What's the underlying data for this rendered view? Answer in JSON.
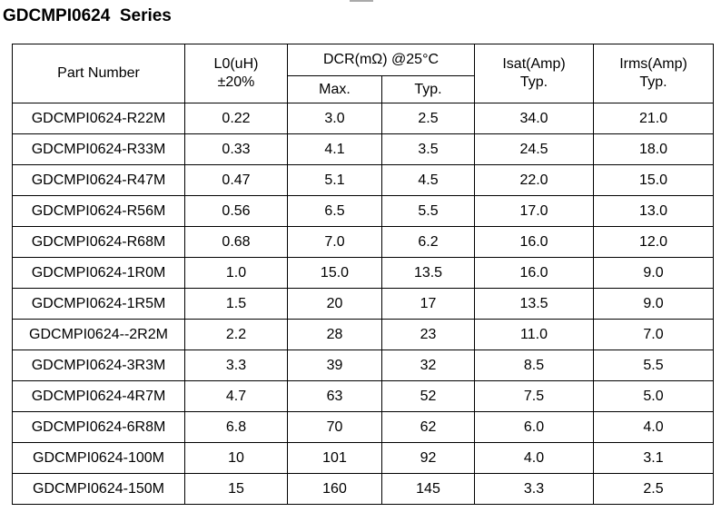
{
  "header": {
    "title": "GDCMPI0624  Series"
  },
  "table": {
    "columns": {
      "part_number": "Part Number",
      "l0": [
        "L0(uH)",
        "±20%"
      ],
      "dcr": "DCR(mΩ) @25°C",
      "dcr_max": "Max.",
      "dcr_typ": "Typ.",
      "isat": [
        "Isat(Amp)",
        "Typ."
      ],
      "irms": [
        "Irms(Amp)",
        "Typ."
      ]
    },
    "rows": [
      [
        "GDCMPI0624-R22M",
        "0.22",
        "3.0",
        "2.5",
        "34.0",
        "21.0"
      ],
      [
        "GDCMPI0624-R33M",
        "0.33",
        "4.1",
        "3.5",
        "24.5",
        "18.0"
      ],
      [
        "GDCMPI0624-R47M",
        "0.47",
        "5.1",
        "4.5",
        "22.0",
        "15.0"
      ],
      [
        "GDCMPI0624-R56M",
        "0.56",
        "6.5",
        "5.5",
        "17.0",
        "13.0"
      ],
      [
        "GDCMPI0624-R68M",
        "0.68",
        "7.0",
        "6.2",
        "16.0",
        "12.0"
      ],
      [
        "GDCMPI0624-1R0M",
        "1.0",
        "15.0",
        "13.5",
        "16.0",
        "9.0"
      ],
      [
        "GDCMPI0624-1R5M",
        "1.5",
        "20",
        "17",
        "13.5",
        "9.0"
      ],
      [
        "GDCMPI0624--2R2M",
        "2.2",
        "28",
        "23",
        "11.0",
        "7.0"
      ],
      [
        "GDCMPI0624-3R3M",
        "3.3",
        "39",
        "32",
        "8.5",
        "5.5"
      ],
      [
        "GDCMPI0624-4R7M",
        "4.7",
        "63",
        "52",
        "7.5",
        "5.0"
      ],
      [
        "GDCMPI0624-6R8M",
        "6.8",
        "70",
        "62",
        "6.0",
        "4.0"
      ],
      [
        "GDCMPI0624-100M",
        "10",
        "101",
        "92",
        "4.0",
        "3.1"
      ],
      [
        "GDCMPI0624-150M",
        "15",
        "160",
        "145",
        "3.3",
        "2.5"
      ]
    ]
  }
}
